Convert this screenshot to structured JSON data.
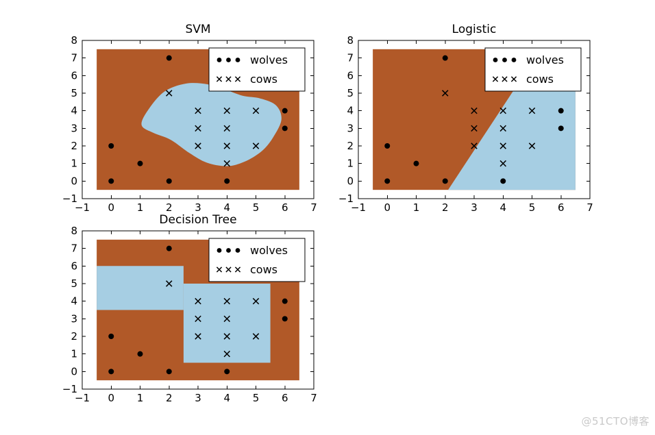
{
  "watermark": "@51CTO博客",
  "colors": {
    "wolves_region": "#b15928",
    "cows_region": "#a6cee3",
    "marker": "#000000",
    "axis": "#000000",
    "figure_background": "#ffffff",
    "legend_background": "#ffffff",
    "watermark_color": "#c9c9c9"
  },
  "chart_data": [
    {
      "type": "scatter",
      "title": "SVM",
      "xlim": [
        -1,
        7
      ],
      "ylim": [
        -1,
        8
      ],
      "xticks": [
        -1,
        0,
        1,
        2,
        3,
        4,
        5,
        6,
        7
      ],
      "yticks": [
        -1,
        0,
        1,
        2,
        3,
        4,
        5,
        6,
        7,
        8
      ],
      "grid": false,
      "legend_position": "upper right",
      "mesh_extent": {
        "x0": -0.5,
        "x1": 6.5,
        "y0": -0.5,
        "y1": 7.5
      },
      "series": [
        {
          "name": "wolves",
          "marker": "dot",
          "points": [
            [
              0,
              0
            ],
            [
              0,
              2
            ],
            [
              1,
              1
            ],
            [
              2,
              0
            ],
            [
              2,
              7
            ],
            [
              4,
              0
            ],
            [
              6,
              3
            ],
            [
              6,
              4
            ]
          ]
        },
        {
          "name": "cows",
          "marker": "x",
          "points": [
            [
              2,
              5
            ],
            [
              3,
              2
            ],
            [
              3,
              3
            ],
            [
              3,
              4
            ],
            [
              4,
              1
            ],
            [
              4,
              2
            ],
            [
              4,
              3
            ],
            [
              4,
              4
            ],
            [
              5,
              2
            ],
            [
              5,
              4
            ]
          ]
        }
      ],
      "cow_regions": [
        {
          "shape": "blob",
          "points": [
            [
              1.05,
              3.2
            ],
            [
              1.3,
              4.1
            ],
            [
              1.85,
              5.1
            ],
            [
              2.6,
              5.55
            ],
            [
              3.35,
              5.5
            ],
            [
              3.95,
              5.2
            ],
            [
              4.55,
              4.85
            ],
            [
              5.15,
              4.7
            ],
            [
              5.7,
              4.3
            ],
            [
              5.88,
              3.5
            ],
            [
              5.6,
              2.5
            ],
            [
              5.2,
              1.7
            ],
            [
              4.6,
              1.1
            ],
            [
              4.0,
              0.85
            ],
            [
              3.3,
              1.05
            ],
            [
              2.7,
              1.6
            ],
            [
              2.05,
              2.35
            ],
            [
              1.45,
              2.75
            ]
          ]
        }
      ]
    },
    {
      "type": "scatter",
      "title": "Logistic",
      "xlim": [
        -1,
        7
      ],
      "ylim": [
        -1,
        8
      ],
      "xticks": [
        -1,
        0,
        1,
        2,
        3,
        4,
        5,
        6,
        7
      ],
      "yticks": [
        -1,
        0,
        1,
        2,
        3,
        4,
        5,
        6,
        7,
        8
      ],
      "grid": false,
      "legend_position": "upper right",
      "mesh_extent": {
        "x0": -0.5,
        "x1": 6.5,
        "y0": -0.5,
        "y1": 7.5
      },
      "series": [
        {
          "name": "wolves",
          "marker": "dot",
          "points": [
            [
              0,
              0
            ],
            [
              0,
              2
            ],
            [
              1,
              1
            ],
            [
              2,
              0
            ],
            [
              2,
              7
            ],
            [
              4,
              0
            ],
            [
              6,
              3
            ],
            [
              6,
              4
            ]
          ]
        },
        {
          "name": "cows",
          "marker": "x",
          "points": [
            [
              2,
              5
            ],
            [
              3,
              2
            ],
            [
              3,
              3
            ],
            [
              3,
              4
            ],
            [
              4,
              1
            ],
            [
              4,
              2
            ],
            [
              4,
              3
            ],
            [
              4,
              4
            ],
            [
              5,
              2
            ],
            [
              5,
              4
            ]
          ]
        }
      ],
      "cow_regions": [
        {
          "shape": "polygon",
          "points": [
            [
              2.1,
              -0.5
            ],
            [
              6.5,
              -0.5
            ],
            [
              6.5,
              7.5
            ],
            [
              5.3,
              7.5
            ]
          ]
        }
      ]
    },
    {
      "type": "scatter",
      "title": "Decision Tree",
      "xlim": [
        -1,
        7
      ],
      "ylim": [
        -1,
        8
      ],
      "xticks": [
        -1,
        0,
        1,
        2,
        3,
        4,
        5,
        6,
        7
      ],
      "yticks": [
        -1,
        0,
        1,
        2,
        3,
        4,
        5,
        6,
        7,
        8
      ],
      "grid": false,
      "legend_position": "upper right",
      "mesh_extent": {
        "x0": -0.5,
        "x1": 6.5,
        "y0": -0.5,
        "y1": 7.5
      },
      "series": [
        {
          "name": "wolves",
          "marker": "dot",
          "points": [
            [
              0,
              0
            ],
            [
              0,
              2
            ],
            [
              1,
              1
            ],
            [
              2,
              0
            ],
            [
              2,
              7
            ],
            [
              4,
              0
            ],
            [
              6,
              3
            ],
            [
              6,
              4
            ]
          ]
        },
        {
          "name": "cows",
          "marker": "x",
          "points": [
            [
              2,
              5
            ],
            [
              3,
              2
            ],
            [
              3,
              3
            ],
            [
              3,
              4
            ],
            [
              4,
              1
            ],
            [
              4,
              2
            ],
            [
              4,
              3
            ],
            [
              4,
              4
            ],
            [
              5,
              2
            ],
            [
              5,
              4
            ]
          ]
        }
      ],
      "cow_regions": [
        {
          "shape": "polygon",
          "points": [
            [
              -0.5,
              3.5
            ],
            [
              2.5,
              3.5
            ],
            [
              2.5,
              6.0
            ],
            [
              -0.5,
              6.0
            ]
          ]
        },
        {
          "shape": "polygon",
          "points": [
            [
              2.5,
              0.5
            ],
            [
              5.5,
              0.5
            ],
            [
              5.5,
              5.0
            ],
            [
              2.5,
              5.0
            ]
          ]
        }
      ]
    }
  ]
}
